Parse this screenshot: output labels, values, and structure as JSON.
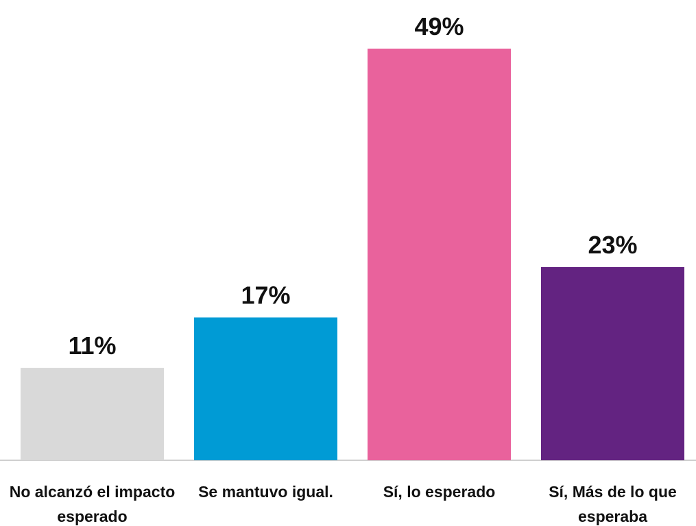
{
  "chart_data": {
    "type": "bar",
    "categories": [
      "No alcanzó el impacto esperado",
      "Se mantuvo igual.",
      "Sí, lo esperado",
      "Sí, Más de lo que esperaba"
    ],
    "values": [
      11,
      17,
      49,
      23
    ],
    "value_labels": [
      "11%",
      "17%",
      "49%",
      "23%"
    ],
    "colors": [
      "#d9d9d9",
      "#009bd5",
      "#e9629c",
      "#632381"
    ]
  }
}
